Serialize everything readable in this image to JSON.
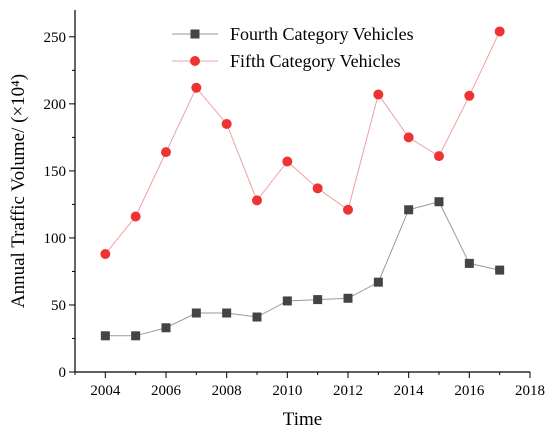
{
  "chart_data": {
    "type": "line",
    "xlabel": "Time",
    "ylabel": "Annual Traffic Volume/ (×10⁴)",
    "xlim": [
      2003,
      2018
    ],
    "ylim": [
      0,
      270
    ],
    "x_ticks": [
      2004,
      2006,
      2008,
      2010,
      2012,
      2014,
      2016,
      2018
    ],
    "y_ticks": [
      0,
      50,
      100,
      150,
      200,
      250
    ],
    "legend_position": "top-center",
    "grid": false,
    "x": [
      2004,
      2005,
      2006,
      2007,
      2008,
      2009,
      2010,
      2011,
      2012,
      2013,
      2014,
      2015,
      2016,
      2017
    ],
    "series": [
      {
        "name": "Fourth Category Vehicles",
        "color": "#444444",
        "line_color": "#9a9a9a",
        "marker": "square",
        "values": [
          27,
          27,
          33,
          44,
          44,
          41,
          53,
          54,
          55,
          67,
          121,
          127,
          81,
          76
        ]
      },
      {
        "name": "Fifth Category Vehicles",
        "color": "#ee3333",
        "line_color": "#f2a0a0",
        "marker": "circle",
        "values": [
          88,
          116,
          164,
          212,
          185,
          128,
          157,
          137,
          121,
          207,
          175,
          161,
          206,
          254
        ]
      }
    ]
  }
}
